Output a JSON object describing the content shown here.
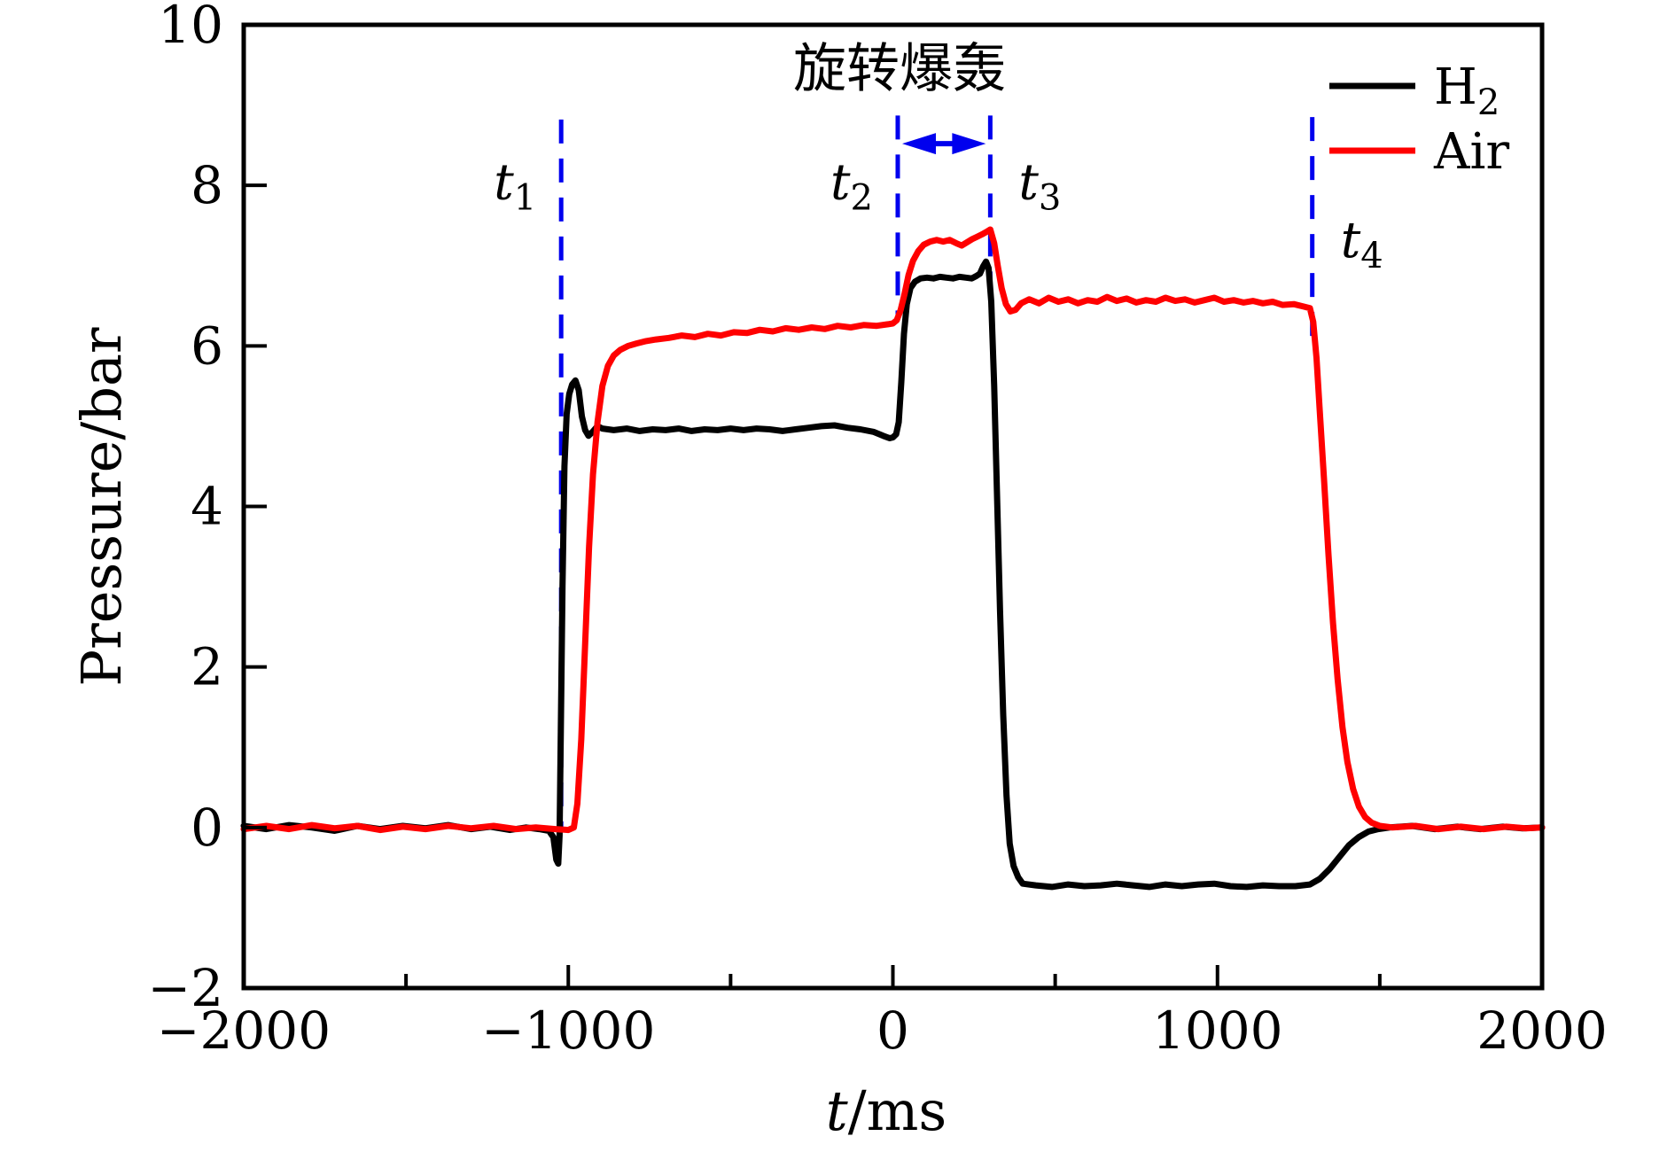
{
  "chart_data": {
    "type": "line",
    "title": "旋转爆轰",
    "xlabel": "t/ms",
    "xlabel_italic": "t",
    "xlabel_rest": "/ms",
    "ylabel": "Pressure/bar",
    "xlim": [
      -2000,
      2000
    ],
    "ylim": [
      -2,
      10
    ],
    "grid": false,
    "legend_position": "top-right",
    "colors": {
      "h2": "#000000",
      "air": "#ff0000",
      "annotation": "#0000ee",
      "axis": "#000000"
    },
    "x_ticks": {
      "major": [
        -2000,
        -1000,
        0,
        1000,
        2000
      ],
      "major_labels": [
        "−2000",
        "−1000",
        "0",
        "1000",
        "2000"
      ],
      "minor": [
        -1500,
        -500,
        500,
        1500
      ]
    },
    "y_ticks": {
      "major": [
        10,
        8,
        6,
        4,
        2,
        0,
        -2
      ],
      "major_labels": [
        "10",
        "8",
        "6",
        "4",
        "2",
        "0",
        "−2"
      ]
    },
    "events": [
      {
        "base": "t",
        "sub": "1",
        "t": -1022,
        "p_top": 8.82,
        "p_bottom": -0.05,
        "label_side": "left",
        "label_p": 8.05
      },
      {
        "base": "t",
        "sub": "2",
        "t": 15,
        "p_top": 8.87,
        "p_bottom": 6.35,
        "label_side": "left",
        "label_p": 8.05
      },
      {
        "base": "t",
        "sub": "3",
        "t": 300,
        "p_top": 8.87,
        "p_bottom": 6.6,
        "label_side": "right",
        "label_p": 8.05
      },
      {
        "base": "t",
        "sub": "4",
        "t": 1292,
        "p_top": 8.85,
        "p_bottom": 6.05,
        "label_side": "right",
        "label_p": 7.33
      }
    ],
    "span_arrow": {
      "from_event": 1,
      "to_event": 2,
      "p": 8.52
    },
    "series": [
      {
        "name": "H₂",
        "name_base": "H",
        "name_sub": "2",
        "color_key": "h2",
        "points": [
          [
            -2000,
            0.02
          ],
          [
            -1930,
            -0.02
          ],
          [
            -1860,
            0.03
          ],
          [
            -1790,
            0.0
          ],
          [
            -1720,
            -0.04
          ],
          [
            -1650,
            0.02
          ],
          [
            -1580,
            -0.02
          ],
          [
            -1510,
            0.02
          ],
          [
            -1440,
            -0.01
          ],
          [
            -1370,
            0.03
          ],
          [
            -1300,
            -0.02
          ],
          [
            -1240,
            0.01
          ],
          [
            -1180,
            -0.03
          ],
          [
            -1130,
            0.0
          ],
          [
            -1090,
            -0.02
          ],
          [
            -1060,
            -0.04
          ],
          [
            -1046,
            -0.12
          ],
          [
            -1037,
            -0.4
          ],
          [
            -1031,
            -0.45
          ],
          [
            -1027,
            -0.1
          ],
          [
            -1023,
            1.2
          ],
          [
            -1018,
            3.0
          ],
          [
            -1012,
            4.5
          ],
          [
            -1005,
            5.15
          ],
          [
            -997,
            5.4
          ],
          [
            -988,
            5.52
          ],
          [
            -978,
            5.57
          ],
          [
            -968,
            5.45
          ],
          [
            -958,
            5.12
          ],
          [
            -948,
            4.95
          ],
          [
            -938,
            4.88
          ],
          [
            -925,
            4.93
          ],
          [
            -910,
            5.0
          ],
          [
            -895,
            4.97
          ],
          [
            -860,
            4.95
          ],
          [
            -820,
            4.97
          ],
          [
            -780,
            4.94
          ],
          [
            -740,
            4.96
          ],
          [
            -700,
            4.95
          ],
          [
            -660,
            4.97
          ],
          [
            -620,
            4.94
          ],
          [
            -580,
            4.96
          ],
          [
            -540,
            4.95
          ],
          [
            -500,
            4.97
          ],
          [
            -460,
            4.95
          ],
          [
            -420,
            4.97
          ],
          [
            -380,
            4.96
          ],
          [
            -340,
            4.94
          ],
          [
            -300,
            4.96
          ],
          [
            -260,
            4.98
          ],
          [
            -220,
            5.0
          ],
          [
            -180,
            5.01
          ],
          [
            -140,
            4.98
          ],
          [
            -100,
            4.96
          ],
          [
            -60,
            4.93
          ],
          [
            -30,
            4.88
          ],
          [
            -10,
            4.85
          ],
          [
            0,
            4.86
          ],
          [
            10,
            4.9
          ],
          [
            18,
            5.05
          ],
          [
            26,
            5.55
          ],
          [
            34,
            6.15
          ],
          [
            43,
            6.52
          ],
          [
            54,
            6.72
          ],
          [
            68,
            6.8
          ],
          [
            85,
            6.84
          ],
          [
            105,
            6.85
          ],
          [
            125,
            6.84
          ],
          [
            145,
            6.86
          ],
          [
            165,
            6.85
          ],
          [
            185,
            6.84
          ],
          [
            205,
            6.86
          ],
          [
            225,
            6.85
          ],
          [
            243,
            6.84
          ],
          [
            257,
            6.87
          ],
          [
            268,
            6.9
          ],
          [
            278,
            6.99
          ],
          [
            287,
            7.05
          ],
          [
            295,
            6.97
          ],
          [
            303,
            6.55
          ],
          [
            312,
            5.5
          ],
          [
            321,
            4.1
          ],
          [
            330,
            2.7
          ],
          [
            340,
            1.4
          ],
          [
            350,
            0.4
          ],
          [
            360,
            -0.2
          ],
          [
            372,
            -0.48
          ],
          [
            386,
            -0.62
          ],
          [
            400,
            -0.7
          ],
          [
            440,
            -0.72
          ],
          [
            490,
            -0.74
          ],
          [
            540,
            -0.71
          ],
          [
            590,
            -0.73
          ],
          [
            640,
            -0.72
          ],
          [
            690,
            -0.7
          ],
          [
            740,
            -0.72
          ],
          [
            790,
            -0.74
          ],
          [
            840,
            -0.71
          ],
          [
            890,
            -0.73
          ],
          [
            940,
            -0.71
          ],
          [
            990,
            -0.7
          ],
          [
            1040,
            -0.73
          ],
          [
            1090,
            -0.74
          ],
          [
            1140,
            -0.72
          ],
          [
            1190,
            -0.73
          ],
          [
            1240,
            -0.73
          ],
          [
            1285,
            -0.71
          ],
          [
            1315,
            -0.64
          ],
          [
            1345,
            -0.52
          ],
          [
            1375,
            -0.37
          ],
          [
            1405,
            -0.22
          ],
          [
            1435,
            -0.12
          ],
          [
            1465,
            -0.05
          ],
          [
            1495,
            -0.02
          ],
          [
            1530,
            0.0
          ],
          [
            1600,
            0.02
          ],
          [
            1670,
            -0.02
          ],
          [
            1740,
            0.01
          ],
          [
            1810,
            -0.02
          ],
          [
            1880,
            0.01
          ],
          [
            1940,
            -0.01
          ],
          [
            2000,
            0.0
          ]
        ]
      },
      {
        "name": "Air",
        "name_base": "Air",
        "name_sub": "",
        "color_key": "air",
        "points": [
          [
            -2000,
            -0.02
          ],
          [
            -1930,
            0.02
          ],
          [
            -1860,
            -0.02
          ],
          [
            -1790,
            0.03
          ],
          [
            -1720,
            -0.01
          ],
          [
            -1650,
            0.02
          ],
          [
            -1580,
            -0.03
          ],
          [
            -1510,
            0.01
          ],
          [
            -1440,
            -0.02
          ],
          [
            -1370,
            0.02
          ],
          [
            -1300,
            -0.01
          ],
          [
            -1230,
            0.02
          ],
          [
            -1160,
            -0.02
          ],
          [
            -1100,
            0.0
          ],
          [
            -1040,
            -0.02
          ],
          [
            -1000,
            -0.03
          ],
          [
            -983,
            0.0
          ],
          [
            -972,
            0.3
          ],
          [
            -960,
            1.1
          ],
          [
            -948,
            2.3
          ],
          [
            -936,
            3.5
          ],
          [
            -924,
            4.4
          ],
          [
            -910,
            5.05
          ],
          [
            -895,
            5.5
          ],
          [
            -878,
            5.75
          ],
          [
            -860,
            5.88
          ],
          [
            -840,
            5.95
          ],
          [
            -815,
            6.0
          ],
          [
            -790,
            6.03
          ],
          [
            -760,
            6.06
          ],
          [
            -730,
            6.08
          ],
          [
            -690,
            6.1
          ],
          [
            -650,
            6.13
          ],
          [
            -610,
            6.11
          ],
          [
            -570,
            6.15
          ],
          [
            -530,
            6.13
          ],
          [
            -490,
            6.17
          ],
          [
            -450,
            6.16
          ],
          [
            -410,
            6.2
          ],
          [
            -370,
            6.18
          ],
          [
            -330,
            6.22
          ],
          [
            -290,
            6.2
          ],
          [
            -250,
            6.23
          ],
          [
            -210,
            6.21
          ],
          [
            -170,
            6.25
          ],
          [
            -130,
            6.23
          ],
          [
            -90,
            6.26
          ],
          [
            -50,
            6.25
          ],
          [
            -15,
            6.27
          ],
          [
            0,
            6.28
          ],
          [
            12,
            6.32
          ],
          [
            24,
            6.45
          ],
          [
            36,
            6.65
          ],
          [
            48,
            6.88
          ],
          [
            62,
            7.06
          ],
          [
            78,
            7.18
          ],
          [
            95,
            7.26
          ],
          [
            115,
            7.3
          ],
          [
            135,
            7.32
          ],
          [
            155,
            7.3
          ],
          [
            175,
            7.32
          ],
          [
            195,
            7.28
          ],
          [
            212,
            7.25
          ],
          [
            228,
            7.29
          ],
          [
            244,
            7.33
          ],
          [
            260,
            7.36
          ],
          [
            275,
            7.39
          ],
          [
            288,
            7.42
          ],
          [
            300,
            7.45
          ],
          [
            312,
            7.28
          ],
          [
            323,
            7.0
          ],
          [
            335,
            6.72
          ],
          [
            348,
            6.52
          ],
          [
            362,
            6.43
          ],
          [
            378,
            6.45
          ],
          [
            395,
            6.53
          ],
          [
            420,
            6.58
          ],
          [
            450,
            6.53
          ],
          [
            480,
            6.6
          ],
          [
            510,
            6.55
          ],
          [
            540,
            6.58
          ],
          [
            570,
            6.53
          ],
          [
            600,
            6.57
          ],
          [
            630,
            6.55
          ],
          [
            660,
            6.61
          ],
          [
            690,
            6.56
          ],
          [
            720,
            6.59
          ],
          [
            750,
            6.54
          ],
          [
            780,
            6.57
          ],
          [
            810,
            6.55
          ],
          [
            840,
            6.6
          ],
          [
            870,
            6.56
          ],
          [
            900,
            6.58
          ],
          [
            930,
            6.54
          ],
          [
            960,
            6.57
          ],
          [
            990,
            6.6
          ],
          [
            1020,
            6.55
          ],
          [
            1050,
            6.57
          ],
          [
            1080,
            6.54
          ],
          [
            1110,
            6.56
          ],
          [
            1140,
            6.53
          ],
          [
            1170,
            6.55
          ],
          [
            1200,
            6.51
          ],
          [
            1235,
            6.52
          ],
          [
            1265,
            6.49
          ],
          [
            1285,
            6.47
          ],
          [
            1295,
            6.3
          ],
          [
            1305,
            5.85
          ],
          [
            1315,
            5.2
          ],
          [
            1328,
            4.35
          ],
          [
            1342,
            3.4
          ],
          [
            1356,
            2.55
          ],
          [
            1370,
            1.85
          ],
          [
            1385,
            1.25
          ],
          [
            1400,
            0.82
          ],
          [
            1418,
            0.48
          ],
          [
            1436,
            0.26
          ],
          [
            1455,
            0.13
          ],
          [
            1475,
            0.06
          ],
          [
            1500,
            0.02
          ],
          [
            1540,
            0.0
          ],
          [
            1610,
            0.02
          ],
          [
            1680,
            -0.02
          ],
          [
            1750,
            0.01
          ],
          [
            1820,
            -0.02
          ],
          [
            1890,
            0.01
          ],
          [
            1950,
            -0.01
          ],
          [
            2000,
            0.0
          ]
        ]
      }
    ]
  }
}
